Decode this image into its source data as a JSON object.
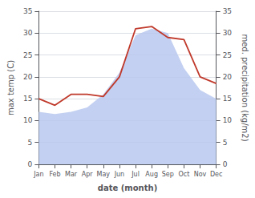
{
  "chart_data": {
    "type": "line",
    "categories": [
      "Jan",
      "Feb",
      "Mar",
      "Apr",
      "May",
      "Jun",
      "Jul",
      "Aug",
      "Sep",
      "Oct",
      "Nov",
      "Dec"
    ],
    "series": [
      {
        "type": "area",
        "color": "#b8c8ee",
        "values": [
          12,
          11.5,
          12,
          13,
          16,
          21,
          29.5,
          31,
          30,
          22,
          17,
          15
        ]
      },
      {
        "type": "line",
        "color": "#c0392b",
        "values": [
          15,
          13.5,
          16,
          16,
          15.5,
          20,
          31,
          31.5,
          29,
          28.5,
          20,
          18.5
        ]
      }
    ],
    "xlabel": "date (month)",
    "ylabel": "max temp (C)",
    "y2label": "med. precipitation (kg/m2)",
    "ylim": [
      0,
      35
    ],
    "yticks": [
      0,
      5,
      10,
      15,
      20,
      25,
      30,
      35
    ],
    "y2lim": [
      0,
      35
    ],
    "y2ticks": [
      0,
      5,
      10,
      15,
      20,
      25,
      30,
      35
    ],
    "grid": true
  }
}
